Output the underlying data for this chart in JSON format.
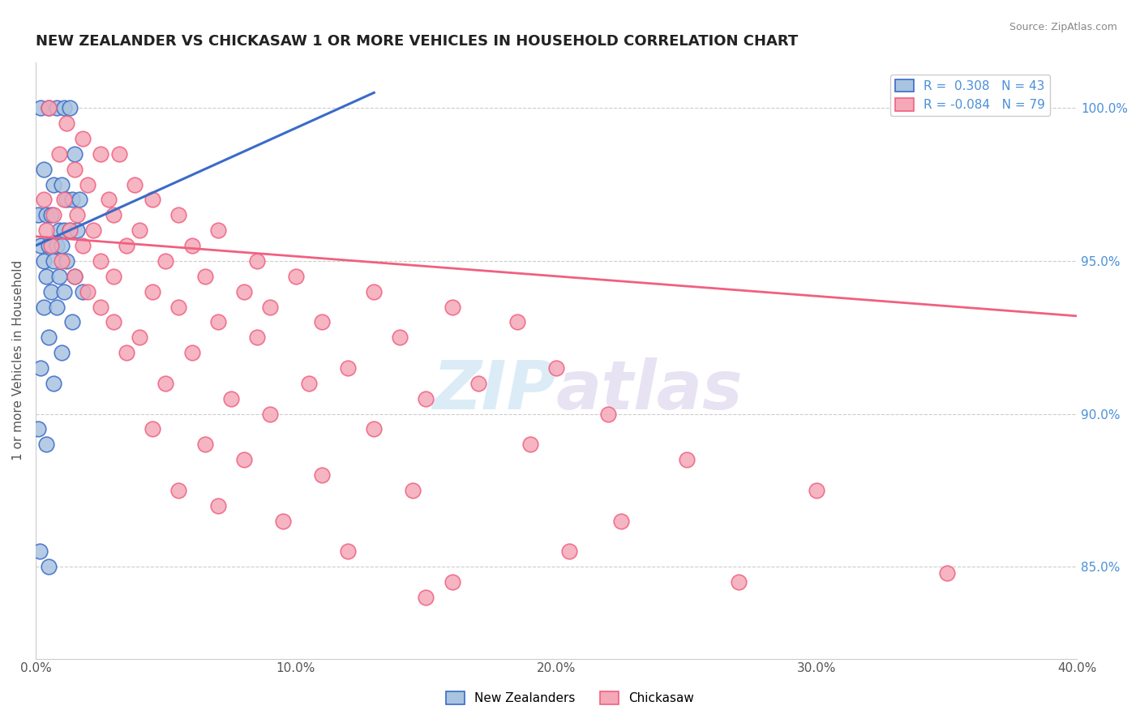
{
  "title": "NEW ZEALANDER VS CHICKASAW 1 OR MORE VEHICLES IN HOUSEHOLD CORRELATION CHART",
  "source": "Source: ZipAtlas.com",
  "ylabel": "1 or more Vehicles in Household",
  "x_min": 0.0,
  "x_max": 40.0,
  "y_min": 82.0,
  "y_max": 101.5,
  "y_ticks": [
    85.0,
    90.0,
    95.0,
    100.0
  ],
  "x_ticks": [
    0.0,
    10.0,
    20.0,
    30.0,
    40.0
  ],
  "blue_R": 0.308,
  "blue_N": 43,
  "pink_R": -0.084,
  "pink_N": 79,
  "blue_color": "#a8c4e0",
  "pink_color": "#f4a8b8",
  "blue_line_color": "#3a6bc8",
  "pink_line_color": "#f06080",
  "legend_label_blue": "New Zealanders",
  "legend_label_pink": "Chickasaw",
  "watermark_zip": "ZIP",
  "watermark_atlas": "atlas",
  "blue_points": [
    [
      0.2,
      100.0
    ],
    [
      0.5,
      100.0
    ],
    [
      0.8,
      100.0
    ],
    [
      1.1,
      100.0
    ],
    [
      1.3,
      100.0
    ],
    [
      1.5,
      98.5
    ],
    [
      0.3,
      98.0
    ],
    [
      0.7,
      97.5
    ],
    [
      1.0,
      97.5
    ],
    [
      1.2,
      97.0
    ],
    [
      1.4,
      97.0
    ],
    [
      1.7,
      97.0
    ],
    [
      0.1,
      96.5
    ],
    [
      0.4,
      96.5
    ],
    [
      0.6,
      96.5
    ],
    [
      0.9,
      96.0
    ],
    [
      1.1,
      96.0
    ],
    [
      1.3,
      96.0
    ],
    [
      1.6,
      96.0
    ],
    [
      0.2,
      95.5
    ],
    [
      0.5,
      95.5
    ],
    [
      0.8,
      95.5
    ],
    [
      1.0,
      95.5
    ],
    [
      0.3,
      95.0
    ],
    [
      0.7,
      95.0
    ],
    [
      1.2,
      95.0
    ],
    [
      0.4,
      94.5
    ],
    [
      0.9,
      94.5
    ],
    [
      1.5,
      94.5
    ],
    [
      0.6,
      94.0
    ],
    [
      1.1,
      94.0
    ],
    [
      1.8,
      94.0
    ],
    [
      0.3,
      93.5
    ],
    [
      0.8,
      93.5
    ],
    [
      1.4,
      93.0
    ],
    [
      0.5,
      92.5
    ],
    [
      1.0,
      92.0
    ],
    [
      0.2,
      91.5
    ],
    [
      0.7,
      91.0
    ],
    [
      0.1,
      89.5
    ],
    [
      0.4,
      89.0
    ],
    [
      0.15,
      85.5
    ],
    [
      0.5,
      85.0
    ]
  ],
  "pink_points": [
    [
      0.5,
      100.0
    ],
    [
      1.2,
      99.5
    ],
    [
      1.8,
      99.0
    ],
    [
      0.9,
      98.5
    ],
    [
      2.5,
      98.5
    ],
    [
      3.2,
      98.5
    ],
    [
      1.5,
      98.0
    ],
    [
      2.0,
      97.5
    ],
    [
      3.8,
      97.5
    ],
    [
      0.3,
      97.0
    ],
    [
      1.1,
      97.0
    ],
    [
      2.8,
      97.0
    ],
    [
      4.5,
      97.0
    ],
    [
      0.7,
      96.5
    ],
    [
      1.6,
      96.5
    ],
    [
      3.0,
      96.5
    ],
    [
      5.5,
      96.5
    ],
    [
      0.4,
      96.0
    ],
    [
      1.3,
      96.0
    ],
    [
      2.2,
      96.0
    ],
    [
      4.0,
      96.0
    ],
    [
      7.0,
      96.0
    ],
    [
      0.6,
      95.5
    ],
    [
      1.8,
      95.5
    ],
    [
      3.5,
      95.5
    ],
    [
      6.0,
      95.5
    ],
    [
      1.0,
      95.0
    ],
    [
      2.5,
      95.0
    ],
    [
      5.0,
      95.0
    ],
    [
      8.5,
      95.0
    ],
    [
      1.5,
      94.5
    ],
    [
      3.0,
      94.5
    ],
    [
      6.5,
      94.5
    ],
    [
      10.0,
      94.5
    ],
    [
      2.0,
      94.0
    ],
    [
      4.5,
      94.0
    ],
    [
      8.0,
      94.0
    ],
    [
      13.0,
      94.0
    ],
    [
      2.5,
      93.5
    ],
    [
      5.5,
      93.5
    ],
    [
      9.0,
      93.5
    ],
    [
      16.0,
      93.5
    ],
    [
      3.0,
      93.0
    ],
    [
      7.0,
      93.0
    ],
    [
      11.0,
      93.0
    ],
    [
      18.5,
      93.0
    ],
    [
      4.0,
      92.5
    ],
    [
      8.5,
      92.5
    ],
    [
      14.0,
      92.5
    ],
    [
      3.5,
      92.0
    ],
    [
      6.0,
      92.0
    ],
    [
      12.0,
      91.5
    ],
    [
      20.0,
      91.5
    ],
    [
      5.0,
      91.0
    ],
    [
      10.5,
      91.0
    ],
    [
      17.0,
      91.0
    ],
    [
      7.5,
      90.5
    ],
    [
      15.0,
      90.5
    ],
    [
      9.0,
      90.0
    ],
    [
      22.0,
      90.0
    ],
    [
      4.5,
      89.5
    ],
    [
      13.0,
      89.5
    ],
    [
      6.5,
      89.0
    ],
    [
      19.0,
      89.0
    ],
    [
      8.0,
      88.5
    ],
    [
      25.0,
      88.5
    ],
    [
      11.0,
      88.0
    ],
    [
      5.5,
      87.5
    ],
    [
      14.5,
      87.5
    ],
    [
      30.0,
      87.5
    ],
    [
      7.0,
      87.0
    ],
    [
      9.5,
      86.5
    ],
    [
      22.5,
      86.5
    ],
    [
      12.0,
      85.5
    ],
    [
      20.5,
      85.5
    ],
    [
      35.0,
      84.8
    ],
    [
      16.0,
      84.5
    ],
    [
      27.0,
      84.5
    ],
    [
      15.0,
      84.0
    ]
  ]
}
